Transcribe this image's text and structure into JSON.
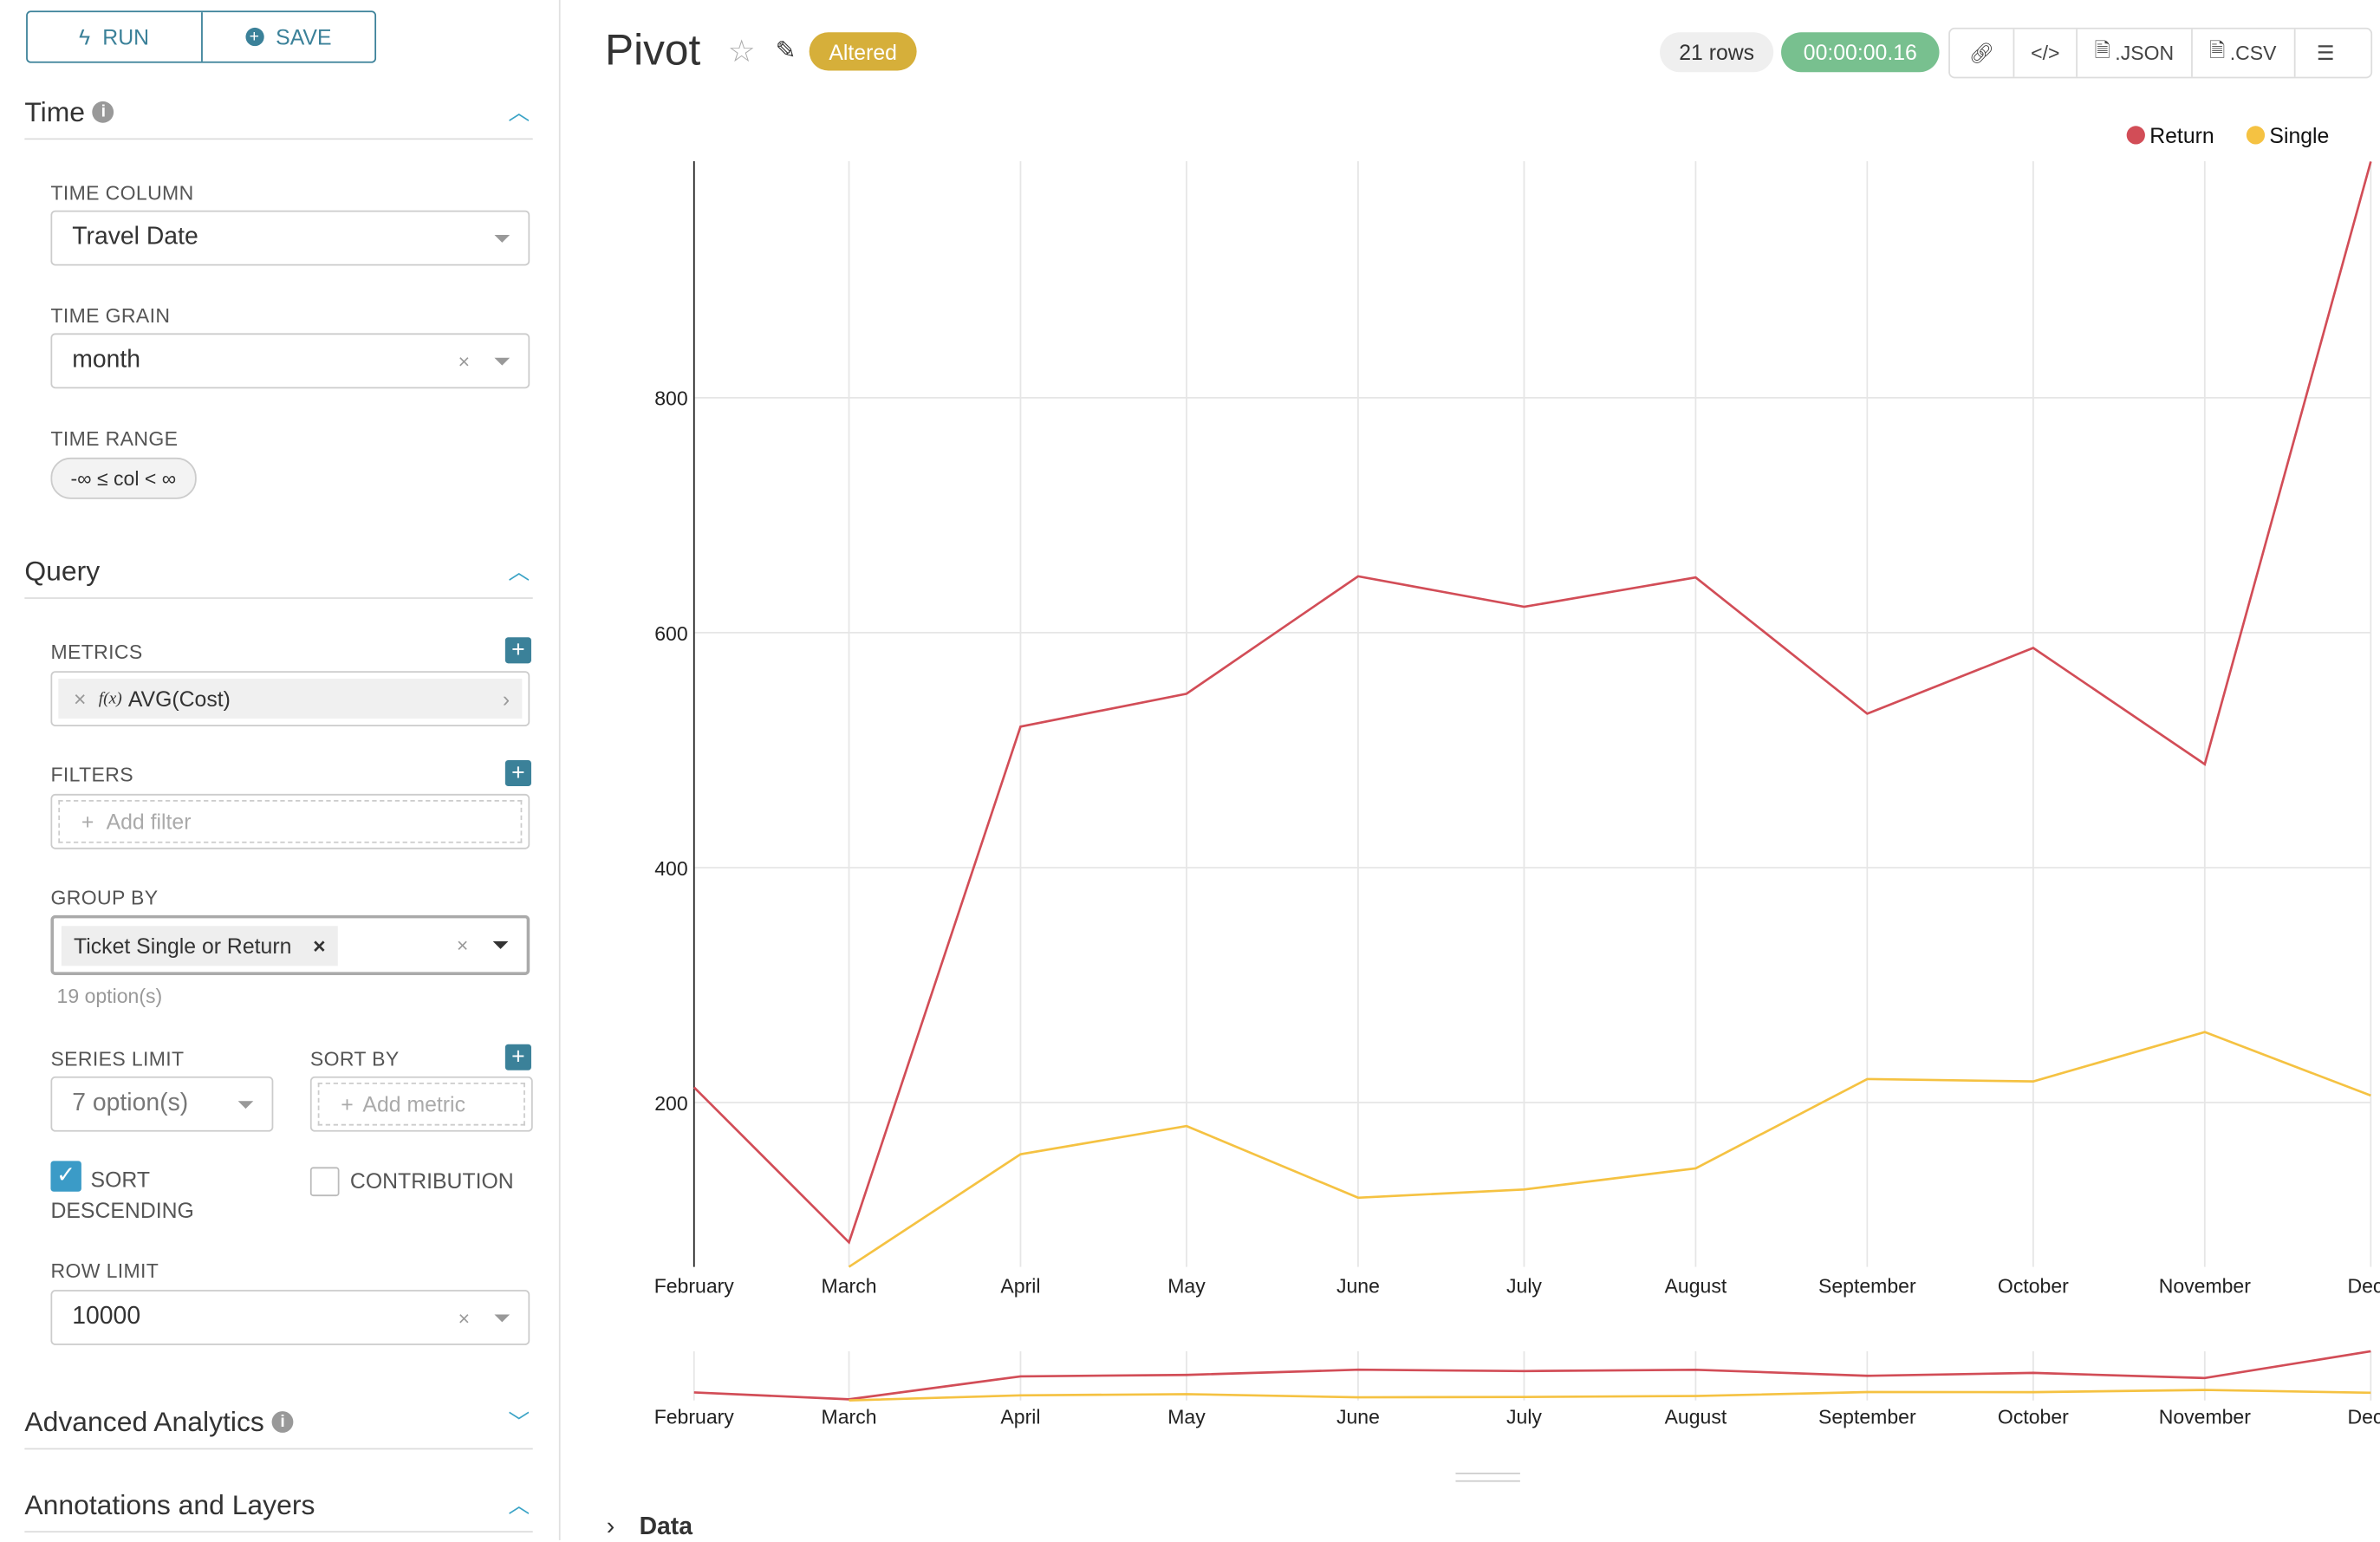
{
  "toolbar": {
    "run": "RUN",
    "save": "SAVE"
  },
  "time": {
    "title": "Time",
    "time_column_label": "TIME COLUMN",
    "time_column": "Travel Date",
    "time_grain_label": "TIME GRAIN",
    "time_grain": "month",
    "time_range_label": "TIME RANGE",
    "time_range": "-∞ ≤ col < ∞"
  },
  "query": {
    "title": "Query",
    "metrics_label": "METRICS",
    "metric": "AVG(Cost)",
    "metric_fx": "f(x)",
    "filters_label": "FILTERS",
    "add_filter": "Add filter",
    "group_by_label": "GROUP BY",
    "group_by_tag": "Ticket Single or Return",
    "group_by_options": "19 option(s)",
    "series_limit_label": "SERIES LIMIT",
    "series_limit": "7 option(s)",
    "sort_by_label": "SORT BY",
    "add_metric": "Add metric",
    "sort_desc_label": "SORT DESCENDING",
    "sort_desc_checked": true,
    "contribution_label": "CONTRIBUTION",
    "contribution_checked": false,
    "row_limit_label": "ROW LIMIT",
    "row_limit": "10000"
  },
  "advanced": {
    "title": "Advanced Analytics"
  },
  "annotations": {
    "title": "Annotations and Layers"
  },
  "header": {
    "title": "Pivot",
    "status": "Altered",
    "rows": "21 rows",
    "timer": "00:00:00.16",
    "json": ".JSON",
    "csv": ".CSV"
  },
  "colors": {
    "accent": "#3b8199",
    "altered": "#d6af3a",
    "timer": "#78c08f",
    "return": "#d24d57",
    "single": "#f5c242"
  },
  "data_section": {
    "label": "Data"
  },
  "chart_data": {
    "type": "line",
    "categories": [
      "February",
      "March",
      "April",
      "May",
      "June",
      "July",
      "August",
      "September",
      "October",
      "November",
      "December"
    ],
    "x_tick_labels": [
      "February",
      "March",
      "April",
      "May",
      "June",
      "July",
      "August",
      "September",
      "October",
      "November",
      "Dece"
    ],
    "y_ticks": [
      200,
      400,
      600,
      800
    ],
    "ylim": [
      60,
      1000
    ],
    "grid": true,
    "legend": "top-right",
    "series": [
      {
        "name": "Return",
        "color": "#d24d57",
        "values": [
          213,
          81,
          520,
          548,
          648,
          622,
          647,
          531,
          587,
          488,
          1001
        ]
      },
      {
        "name": "Single",
        "color": "#f5c242",
        "values": [
          null,
          60,
          156,
          180,
          119,
          126,
          144,
          220,
          218,
          260,
          206
        ]
      }
    ]
  }
}
